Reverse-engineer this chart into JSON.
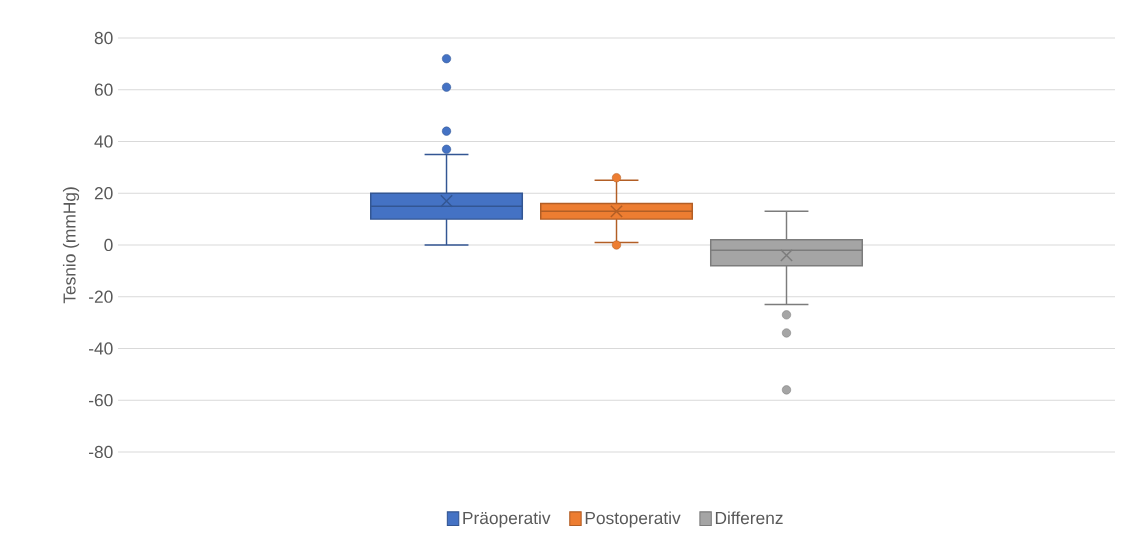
{
  "chart_data": {
    "type": "box",
    "ylabel": "Tesnio (mmHg)",
    "categories": [
      null
    ],
    "ylim": [
      -80,
      80
    ],
    "yticks": [
      -80,
      -60,
      -40,
      -20,
      0,
      20,
      40,
      60,
      80
    ],
    "grid": "y",
    "legend": "bottom",
    "series": [
      {
        "name": "Präoperativ",
        "color": "#4472c4",
        "boxes": [
          {
            "low": 0,
            "q1": 10,
            "median": 15,
            "q3": 20,
            "high": 35,
            "mean": 17,
            "outliers": [
              37,
              44,
              61,
              72
            ]
          }
        ]
      },
      {
        "name": "Postoperativ",
        "color": "#ed7d31",
        "boxes": [
          {
            "low": 1,
            "q1": 10,
            "median": 13,
            "q3": 16,
            "high": 25,
            "mean": 13,
            "outliers": [
              0,
              26
            ]
          }
        ]
      },
      {
        "name": "Differenz",
        "color": "#a5a5a5",
        "boxes": [
          {
            "low": -23,
            "q1": -8,
            "median": -2,
            "q3": 2,
            "high": 13,
            "mean": -4,
            "outliers": [
              -27,
              -34,
              -56
            ]
          }
        ]
      }
    ]
  }
}
